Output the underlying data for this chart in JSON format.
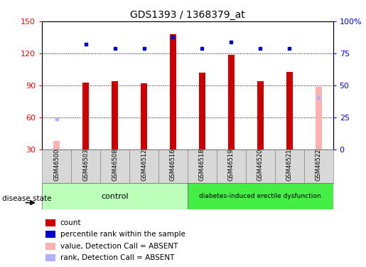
{
  "title": "GDS1393 / 1368379_at",
  "samples": [
    "GSM46500",
    "GSM46503",
    "GSM46508",
    "GSM46512",
    "GSM46516",
    "GSM46518",
    "GSM46519",
    "GSM46520",
    "GSM46521",
    "GSM46522"
  ],
  "count_values": [
    null,
    93,
    94,
    92,
    138,
    102,
    119,
    94,
    103,
    null
  ],
  "percentile_values": [
    null,
    82,
    79,
    79,
    88,
    79,
    84,
    79,
    79,
    null
  ],
  "absent_value_values": [
    38,
    null,
    null,
    null,
    null,
    null,
    null,
    null,
    null,
    89
  ],
  "absent_rank_gsm46500": 59,
  "absent_rank_gsm46522": 79,
  "control_indices": [
    0,
    1,
    2,
    3,
    4
  ],
  "disease_indices": [
    5,
    6,
    7,
    8,
    9
  ],
  "ylim_left": [
    30,
    150
  ],
  "ylim_right": [
    0,
    100
  ],
  "yticks_left": [
    30,
    60,
    90,
    120,
    150
  ],
  "yticks_right": [
    0,
    25,
    50,
    75,
    100
  ],
  "color_count": "#cc0000",
  "color_percentile": "#0000cc",
  "color_absent_value": "#ffb0b0",
  "color_absent_rank": "#b0b0ff",
  "color_control_bg": "#bbffbb",
  "color_disease_bg": "#44ee44",
  "color_sample_bg": "#d8d8d8",
  "bar_width": 0.4
}
